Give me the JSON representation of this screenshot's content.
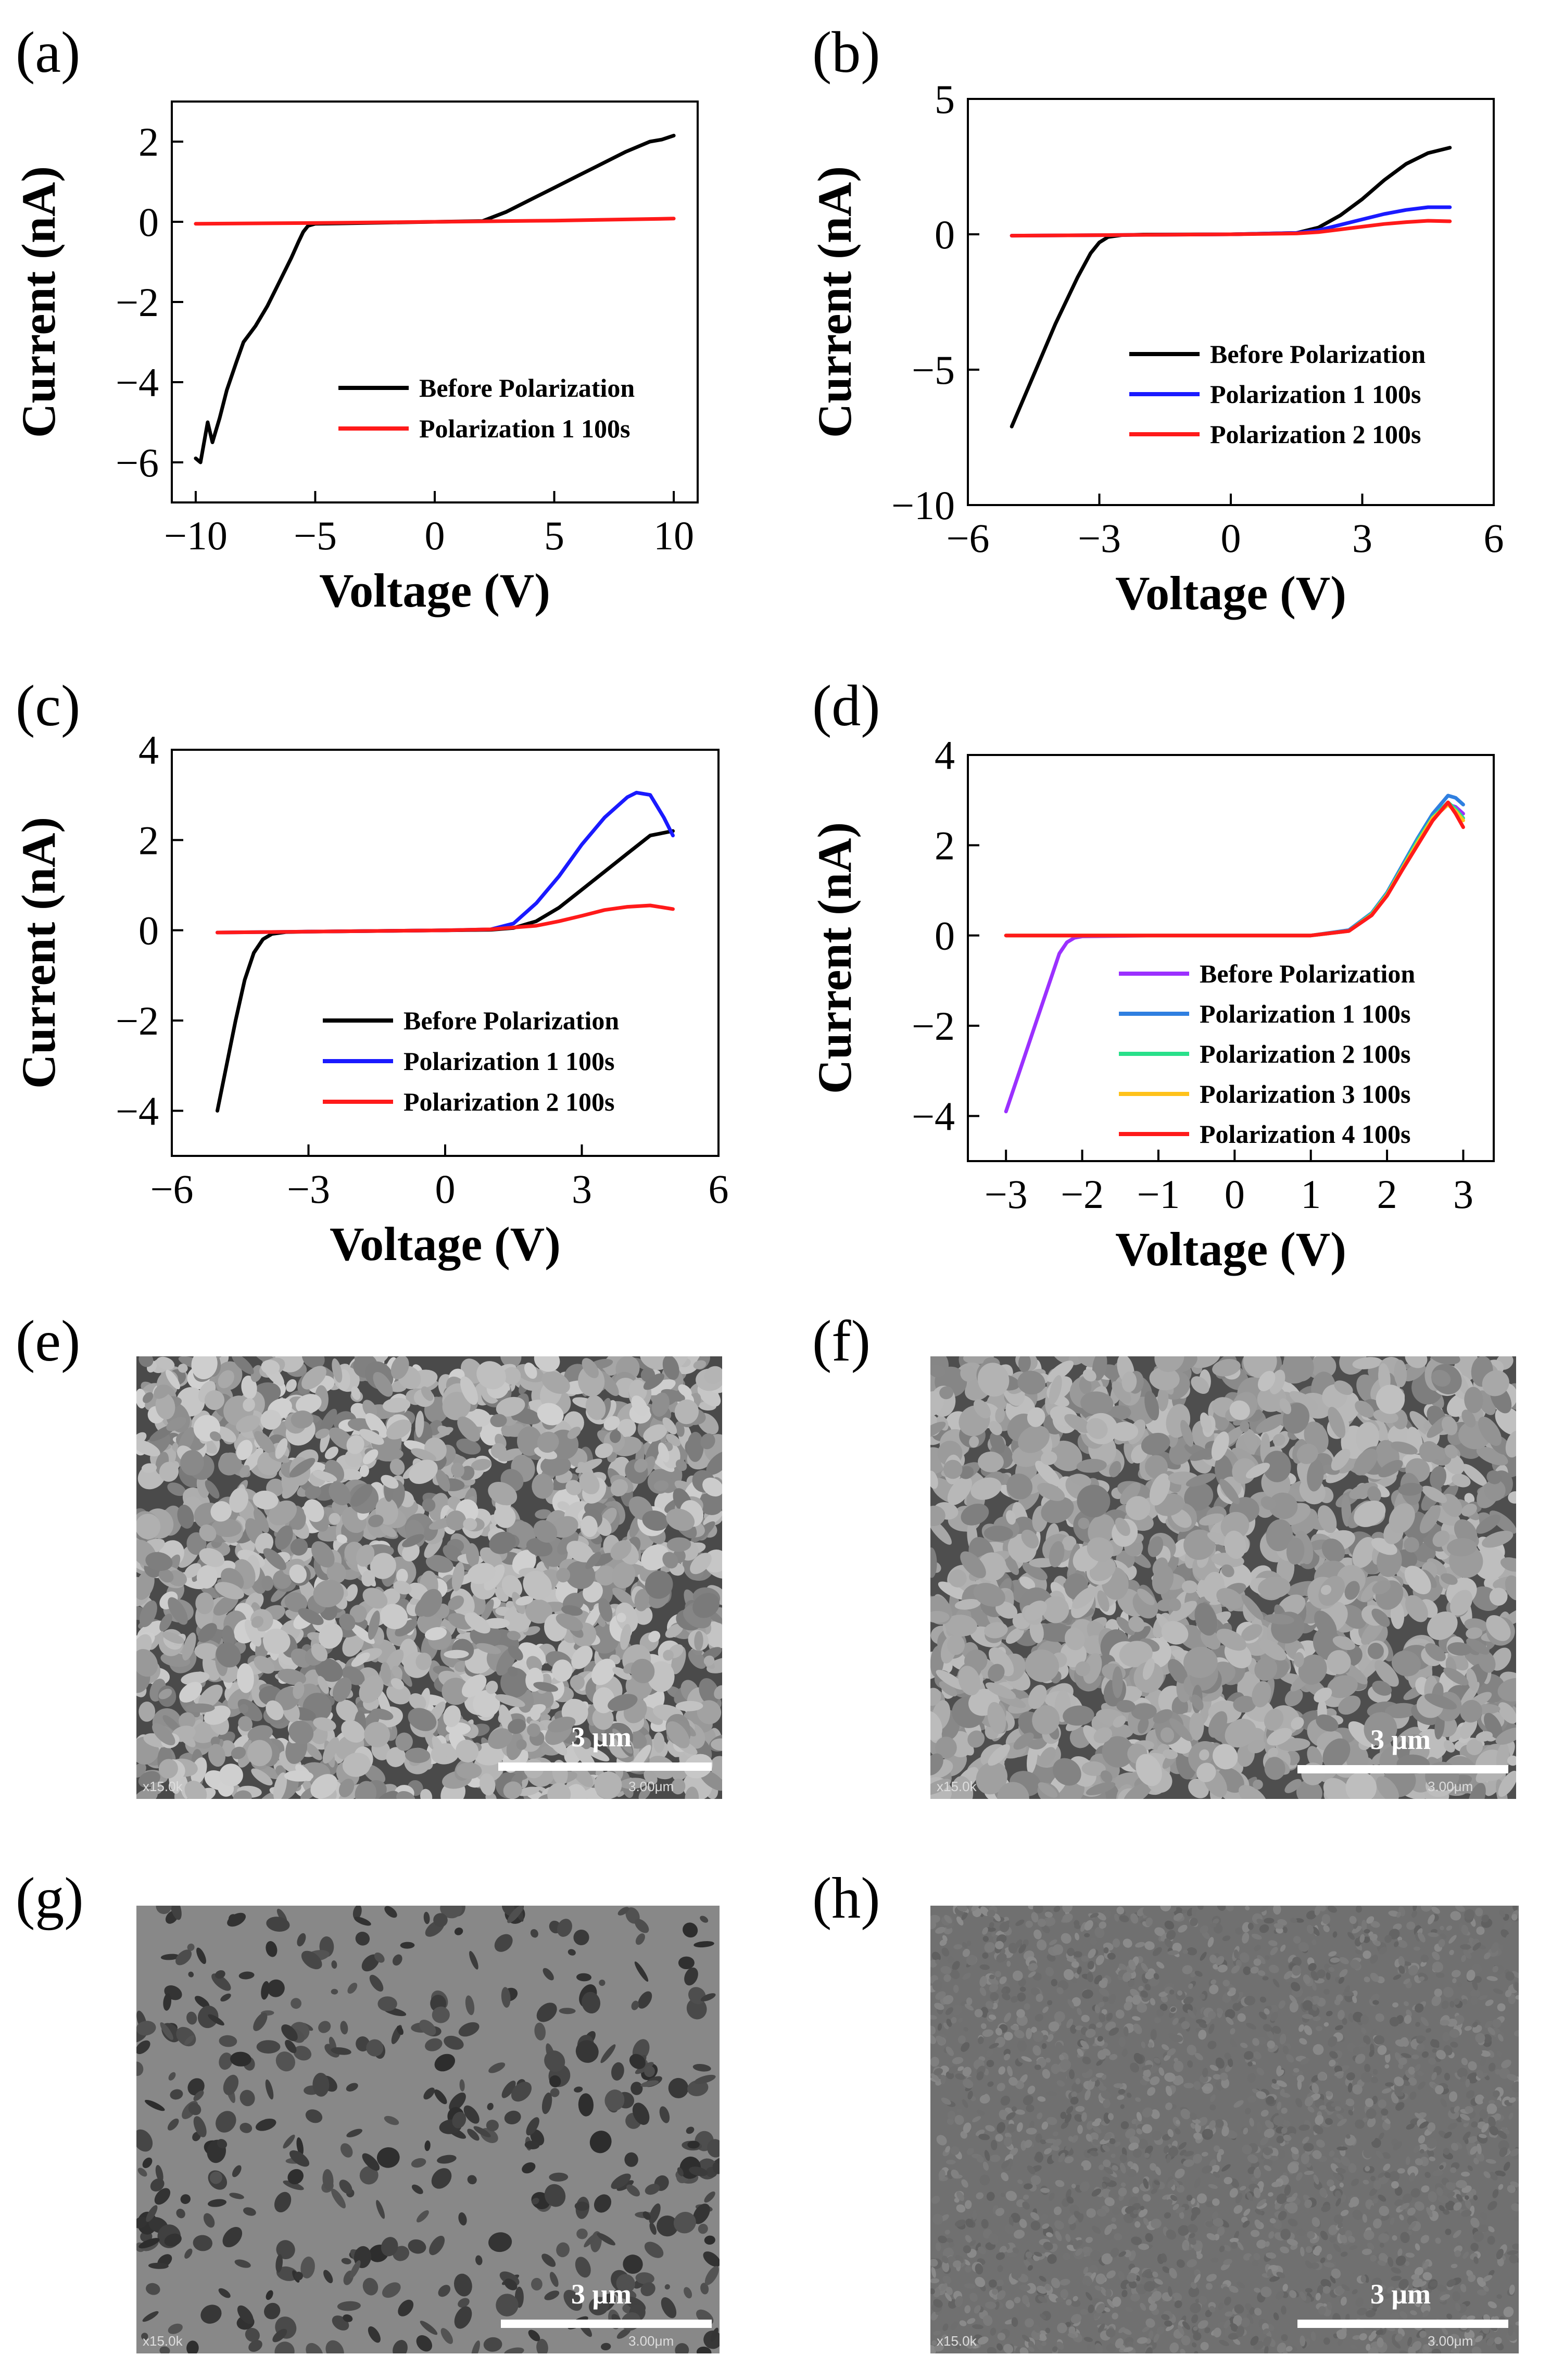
{
  "panels": {
    "a": "(a)",
    "b": "(b)",
    "c": "(c)",
    "d": "(d)",
    "e": "(e)",
    "f": "(f)",
    "g": "(g)",
    "h": "(h)"
  },
  "sem": [
    {
      "id": "e",
      "scale_label": "3 μm",
      "magnification": "x15.0k",
      "scale_small": "3.00μm"
    },
    {
      "id": "f",
      "scale_label": "3 μm",
      "magnification": "x15.0k",
      "scale_small": "3.00μm"
    },
    {
      "id": "g",
      "scale_label": "3 μm",
      "magnification": "x15.0k",
      "scale_small": "3.00μm"
    },
    {
      "id": "h",
      "scale_label": "3 μm",
      "magnification": "x15.0k",
      "scale_small": "3.00μm"
    }
  ],
  "colors": {
    "before": "#000000",
    "pol1_a": "#ff1a1a",
    "pol1_blue": "#1a1aff",
    "pol2_red": "#ff1a1a",
    "pol1_d": "#2f7fe0",
    "pol2_d": "#29e08a",
    "pol3_d": "#ffc21a",
    "pol4_d": "#ff1a1a",
    "before_d": "#9b30ff"
  },
  "chart_data": [
    {
      "id": "a",
      "type": "line",
      "xlabel": "Voltage (V)",
      "ylabel": "Current (nA)",
      "xlim": [
        -11,
        11
      ],
      "ylim": [
        -7,
        3
      ],
      "xticks": [
        -10,
        -5,
        0,
        5,
        10
      ],
      "yticks": [
        -6,
        -4,
        -2,
        0,
        2
      ],
      "series": [
        {
          "name": "Before Polarization",
          "color": "#000000",
          "x": [
            -10,
            -9.8,
            -9.5,
            -9.3,
            -9.0,
            -8.7,
            -8.3,
            -8.0,
            -7.5,
            -7.0,
            -6.5,
            -6.0,
            -5.7,
            -5.5,
            -5.3,
            -5.0,
            -4.0,
            -2.0,
            0,
            2.0,
            3.0,
            4.0,
            5.0,
            6.0,
            7.0,
            8.0,
            9.0,
            9.5,
            10
          ],
          "y": [
            -5.9,
            -6.0,
            -5.0,
            -5.5,
            -4.9,
            -4.2,
            -3.5,
            -3.0,
            -2.6,
            -2.1,
            -1.5,
            -0.9,
            -0.5,
            -0.25,
            -0.1,
            -0.05,
            -0.04,
            -0.02,
            0,
            0.02,
            0.25,
            0.55,
            0.85,
            1.15,
            1.45,
            1.75,
            2.0,
            2.05,
            2.15
          ]
        },
        {
          "name": "Polarization 1 100s",
          "color": "#ff1a1a",
          "x": [
            -10,
            -5,
            0,
            5,
            10
          ],
          "y": [
            -0.05,
            -0.03,
            0,
            0.03,
            0.08
          ]
        }
      ]
    },
    {
      "id": "b",
      "type": "line",
      "xlabel": "Voltage (V)",
      "ylabel": "Current (nA)",
      "xlim": [
        -6,
        6
      ],
      "ylim": [
        -10,
        5
      ],
      "xticks": [
        -6,
        -3,
        0,
        3,
        6
      ],
      "yticks": [
        -10,
        -5,
        0,
        5
      ],
      "series": [
        {
          "name": "Before Polarization",
          "color": "#000000",
          "x": [
            -5,
            -4.5,
            -4,
            -3.5,
            -3.2,
            -3.0,
            -2.8,
            -2.5,
            -2,
            0,
            1.5,
            2.0,
            2.5,
            3.0,
            3.5,
            4.0,
            4.5,
            5.0
          ],
          "y": [
            -7.1,
            -5.2,
            -3.3,
            -1.6,
            -0.7,
            -0.3,
            -0.1,
            -0.03,
            -0.01,
            0,
            0.05,
            0.25,
            0.7,
            1.3,
            2.0,
            2.6,
            3.0,
            3.2
          ]
        },
        {
          "name": "Polarization 1 100s",
          "color": "#1a1aff",
          "x": [
            -5,
            -3,
            0,
            1.5,
            2.0,
            2.5,
            3.0,
            3.5,
            4.0,
            4.5,
            5.0
          ],
          "y": [
            -0.05,
            -0.03,
            0,
            0.05,
            0.15,
            0.35,
            0.55,
            0.75,
            0.9,
            1.0,
            1.0
          ]
        },
        {
          "name": "Polarization 2 100s",
          "color": "#ff1a1a",
          "x": [
            -5,
            -3,
            0,
            1.5,
            2.0,
            2.5,
            3.0,
            3.5,
            4.0,
            4.5,
            5.0
          ],
          "y": [
            -0.05,
            -0.03,
            0,
            0.03,
            0.08,
            0.18,
            0.28,
            0.38,
            0.45,
            0.5,
            0.48
          ]
        }
      ]
    },
    {
      "id": "c",
      "type": "line",
      "xlabel": "Voltage (V)",
      "ylabel": "Current (nA)",
      "xlim": [
        -6,
        6
      ],
      "ylim": [
        -5,
        4
      ],
      "xticks": [
        -6,
        -3,
        0,
        3,
        6
      ],
      "yticks": [
        -4,
        -2,
        0,
        2,
        4
      ],
      "series": [
        {
          "name": "Before Polarization",
          "color": "#000000",
          "x": [
            -5,
            -4.8,
            -4.6,
            -4.4,
            -4.2,
            -4.0,
            -3.8,
            -3.5,
            -3,
            0,
            1.0,
            1.5,
            2.0,
            2.5,
            3.0,
            3.5,
            4.0,
            4.5,
            5.0
          ],
          "y": [
            -4.0,
            -3.0,
            -2.0,
            -1.1,
            -0.5,
            -0.2,
            -0.08,
            -0.04,
            -0.03,
            0,
            0.01,
            0.05,
            0.2,
            0.5,
            0.9,
            1.3,
            1.7,
            2.1,
            2.2
          ]
        },
        {
          "name": "Polarization 1 100s",
          "color": "#1a1aff",
          "x": [
            -5,
            -3,
            0,
            1.0,
            1.5,
            2.0,
            2.5,
            3.0,
            3.5,
            4.0,
            4.2,
            4.5,
            4.8,
            5.0
          ],
          "y": [
            -0.05,
            -0.03,
            0,
            0.02,
            0.15,
            0.6,
            1.2,
            1.9,
            2.5,
            2.95,
            3.05,
            3.0,
            2.5,
            2.1
          ]
        },
        {
          "name": "Polarization 2 100s",
          "color": "#ff1a1a",
          "x": [
            -5,
            -3,
            0,
            1.0,
            2.0,
            2.5,
            3.0,
            3.5,
            4.0,
            4.5,
            5.0
          ],
          "y": [
            -0.05,
            -0.03,
            0,
            0.02,
            0.1,
            0.2,
            0.32,
            0.45,
            0.52,
            0.55,
            0.47
          ]
        }
      ]
    },
    {
      "id": "d",
      "type": "line",
      "xlabel": "Voltage (V)",
      "ylabel": "Current (nA)",
      "xlim": [
        -3.5,
        3.4
      ],
      "ylim": [
        -5,
        4
      ],
      "xticks": [
        -3,
        -2,
        -1,
        0,
        1,
        2,
        3
      ],
      "yticks": [
        -4,
        -2,
        0,
        2,
        4
      ],
      "series": [
        {
          "name": "Before Polarization",
          "color": "#9b30ff",
          "x": [
            -3.0,
            -2.8,
            -2.6,
            -2.4,
            -2.3,
            -2.2,
            -2.1,
            -2.0,
            -1.0,
            0,
            1.0,
            1.5,
            1.8,
            2.0,
            2.2,
            2.4,
            2.6,
            2.8,
            2.9,
            3.0
          ],
          "y": [
            -3.9,
            -2.9,
            -1.9,
            -0.9,
            -0.4,
            -0.15,
            -0.05,
            -0.02,
            0,
            0,
            0,
            0.1,
            0.45,
            0.9,
            1.5,
            2.1,
            2.6,
            2.9,
            2.85,
            2.7
          ]
        },
        {
          "name": "Polarization 1 100s",
          "color": "#2f7fe0",
          "x": [
            -3.0,
            -2.0,
            -1.0,
            0,
            1.0,
            1.5,
            1.8,
            2.0,
            2.2,
            2.4,
            2.6,
            2.8,
            2.9,
            3.0
          ],
          "y": [
            0,
            0,
            0,
            0,
            0,
            0.12,
            0.5,
            0.95,
            1.55,
            2.15,
            2.7,
            3.1,
            3.05,
            2.9
          ]
        },
        {
          "name": "Polarization 2 100s",
          "color": "#29e08a",
          "x": [
            -3.0,
            -2.0,
            -1.0,
            0,
            1.0,
            1.5,
            1.8,
            2.0,
            2.2,
            2.4,
            2.6,
            2.8,
            2.9,
            3.0
          ],
          "y": [
            0,
            0,
            0,
            0,
            0,
            0.1,
            0.48,
            0.92,
            1.5,
            2.1,
            2.62,
            2.95,
            2.8,
            2.6
          ]
        },
        {
          "name": "Polarization 3 100s",
          "color": "#ffc21a",
          "x": [
            -3.0,
            -2.0,
            -1.0,
            0,
            1.0,
            1.5,
            1.8,
            2.0,
            2.2,
            2.4,
            2.6,
            2.8,
            2.9,
            3.0
          ],
          "y": [
            0,
            0,
            0,
            0,
            0,
            0.1,
            0.46,
            0.9,
            1.48,
            2.05,
            2.6,
            2.9,
            2.75,
            2.55
          ]
        },
        {
          "name": "Polarization 4 100s",
          "color": "#ff1a1a",
          "x": [
            -3.0,
            -2.0,
            -1.0,
            0,
            1.0,
            1.5,
            1.8,
            2.0,
            2.2,
            2.4,
            2.6,
            2.8,
            2.9,
            3.0
          ],
          "y": [
            0,
            0,
            0,
            0,
            0,
            0.1,
            0.45,
            0.88,
            1.45,
            2.0,
            2.55,
            2.95,
            2.7,
            2.4
          ]
        }
      ]
    }
  ]
}
